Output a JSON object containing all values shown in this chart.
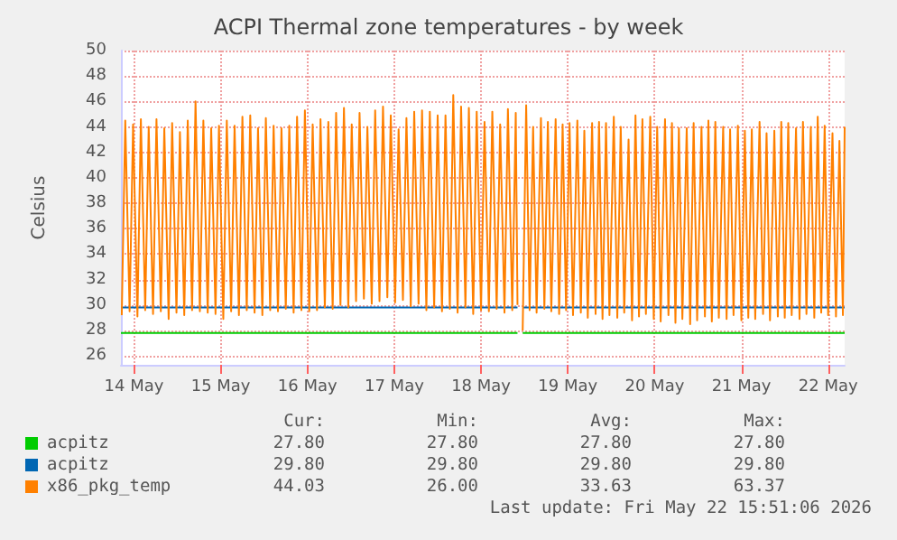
{
  "chart_data": {
    "type": "line",
    "title": "ACPI Thermal zone temperatures - by week",
    "ylabel": "Celsius",
    "xlim": [
      "--05-13T20:24",
      "--05-22T04:34"
    ],
    "xticks": [
      {
        "value": "--05-14",
        "label": "14 May"
      },
      {
        "value": "--05-15",
        "label": "15 May"
      },
      {
        "value": "--05-16",
        "label": "16 May"
      },
      {
        "value": "--05-17",
        "label": "17 May"
      },
      {
        "value": "--05-18",
        "label": "18 May"
      },
      {
        "value": "--05-19",
        "label": "19 May"
      },
      {
        "value": "--05-20",
        "label": "20 May"
      },
      {
        "value": "--05-21",
        "label": "21 May"
      },
      {
        "value": "--05-22",
        "label": "22 May"
      }
    ],
    "ylim": [
      25.3,
      50
    ],
    "yticks": [
      26,
      28,
      30,
      32,
      34,
      36,
      38,
      40,
      42,
      44,
      46,
      48,
      50
    ],
    "grid": true,
    "legend": "bottom",
    "marker": "none",
    "line_style": "solid",
    "series": [
      {
        "name": "acpitz",
        "color": "#00cc00",
        "x": [
          "--05-13T20:24",
          "--05-18T10:05",
          "--05-18T10:48",
          "--05-18T11:31",
          "--05-22T04:34"
        ],
        "values": [
          27.8,
          27.8,
          null,
          27.8,
          27.8
        ]
      },
      {
        "name": "acpitz",
        "color": "#0066b3",
        "x": [
          "--05-13T20:24",
          "--05-18T10:05",
          "--05-18T10:48",
          "--05-18T11:31",
          "--05-22T04:34"
        ],
        "values": [
          29.8,
          29.8,
          null,
          29.8,
          29.8
        ]
      },
      {
        "name": "x86_pkg_temp",
        "color": "#ff8000",
        "x": [
          "--05-13T20:38",
          "--05-13T21:36",
          "--05-13T22:48",
          "--05-13T23:46",
          "--05-14T00:58",
          "--05-14T01:55",
          "--05-14T03:07",
          "--05-14T04:05",
          "--05-14T05:17",
          "--05-14T06:14",
          "--05-14T07:26",
          "--05-14T08:24",
          "--05-14T09:36",
          "--05-14T10:34",
          "--05-14T11:46",
          "--05-14T12:43",
          "--05-14T13:55",
          "--05-14T14:53",
          "--05-14T16:05",
          "--05-14T17:02",
          "--05-14T18:14",
          "--05-14T19:12",
          "--05-14T20:24",
          "--05-14T21:22",
          "--05-14T22:34",
          "--05-14T23:31",
          "--05-15T00:43",
          "--05-15T01:41",
          "--05-15T02:53",
          "--05-15T03:50",
          "--05-15T05:02",
          "--05-15T06:00",
          "--05-15T07:12",
          "--05-15T08:10",
          "--05-15T09:22",
          "--05-15T10:19",
          "--05-15T11:31",
          "--05-15T12:29",
          "--05-15T13:41",
          "--05-15T14:38",
          "--05-15T15:50",
          "--05-15T16:48",
          "--05-15T18:00",
          "--05-15T18:58",
          "--05-15T20:10",
          "--05-15T21:07",
          "--05-15T22:19",
          "--05-15T23:17",
          "--05-16T00:29",
          "--05-16T01:26",
          "--05-16T02:38",
          "--05-16T03:36",
          "--05-16T04:48",
          "--05-16T05:46",
          "--05-16T06:58",
          "--05-16T07:55",
          "--05-16T09:07",
          "--05-16T10:05",
          "--05-16T11:17",
          "--05-16T12:14",
          "--05-16T13:26",
          "--05-16T14:24",
          "--05-16T15:36",
          "--05-16T16:34",
          "--05-16T17:46",
          "--05-16T18:43",
          "--05-16T19:55",
          "--05-16T20:53",
          "--05-16T22:05",
          "--05-16T23:02",
          "--05-17T00:14",
          "--05-17T01:12",
          "--05-17T02:24",
          "--05-17T03:22",
          "--05-17T04:34",
          "--05-17T05:31",
          "--05-17T06:43",
          "--05-17T07:41",
          "--05-17T08:53",
          "--05-17T09:50",
          "--05-17T11:02",
          "--05-17T12:00",
          "--05-17T13:12",
          "--05-17T14:10",
          "--05-17T15:22",
          "--05-17T16:19",
          "--05-17T17:31",
          "--05-17T18:29",
          "--05-17T19:41",
          "--05-17T20:38",
          "--05-17T21:50",
          "--05-17T22:48",
          "--05-18T00:00",
          "--05-18T00:58",
          "--05-18T02:10",
          "--05-18T03:07",
          "--05-18T04:19",
          "--05-18T05:17",
          "--05-18T06:29",
          "--05-18T07:26",
          "--05-18T08:38",
          "--05-18T09:36",
          "--05-18T10:05",
          "--05-18T10:48",
          "--05-18T11:31",
          "--05-18T12:29",
          "--05-18T13:26",
          "--05-18T14:24",
          "--05-18T15:22",
          "--05-18T16:34",
          "--05-18T17:31",
          "--05-18T18:29",
          "--05-18T19:26",
          "--05-18T20:38",
          "--05-18T21:36",
          "--05-18T22:34",
          "--05-18T23:31",
          "--05-19T00:29",
          "--05-19T01:26",
          "--05-19T02:38",
          "--05-19T03:36",
          "--05-19T04:34",
          "--05-19T05:31",
          "--05-19T06:43",
          "--05-19T07:41",
          "--05-19T08:38",
          "--05-19T09:36",
          "--05-19T10:34",
          "--05-19T11:31",
          "--05-19T12:43",
          "--05-19T13:41",
          "--05-19T14:38",
          "--05-19T15:36",
          "--05-19T16:48",
          "--05-19T17:46",
          "--05-19T18:43",
          "--05-19T19:41",
          "--05-19T20:38",
          "--05-19T21:36",
          "--05-19T22:48",
          "--05-19T23:46",
          "--05-20T00:43",
          "--05-20T01:41",
          "--05-20T02:53",
          "--05-20T03:50",
          "--05-20T04:48",
          "--05-20T05:46",
          "--05-20T06:43",
          "--05-20T07:41",
          "--05-20T08:53",
          "--05-20T09:50",
          "--05-20T10:48",
          "--05-20T11:46",
          "--05-20T12:58",
          "--05-20T13:55",
          "--05-20T14:53",
          "--05-20T15:50",
          "--05-20T16:48",
          "--05-20T17:46",
          "--05-20T18:58",
          "--05-20T19:55",
          "--05-20T20:53",
          "--05-20T21:50",
          "--05-20T23:02",
          "--05-21T00:00",
          "--05-21T00:58",
          "--05-21T01:55",
          "--05-21T02:53",
          "--05-21T03:50",
          "--05-21T05:02",
          "--05-21T06:00",
          "--05-21T06:58",
          "--05-21T07:55",
          "--05-21T09:07",
          "--05-21T10:05",
          "--05-21T11:02",
          "--05-21T12:00",
          "--05-21T12:58",
          "--05-21T13:55",
          "--05-21T15:07",
          "--05-21T16:05",
          "--05-21T17:02",
          "--05-21T18:00",
          "--05-21T19:12",
          "--05-21T20:10",
          "--05-21T21:07",
          "--05-21T22:05",
          "--05-21T23:02",
          "--05-22T00:00",
          "--05-22T01:12",
          "--05-22T02:10",
          "--05-22T03:07",
          "--05-22T04:05",
          "--05-22T04:34"
        ],
        "values": [
          29.2,
          44.5,
          29.5,
          44.2,
          29.1,
          44.6,
          29.6,
          44.0,
          29.3,
          44.6,
          29.5,
          43.9,
          28.9,
          44.3,
          29.4,
          43.6,
          29.2,
          44.5,
          29.6,
          46.0,
          29.5,
          44.5,
          29.4,
          43.9,
          29.3,
          44.1,
          28.9,
          44.5,
          29.5,
          44.1,
          29.2,
          44.8,
          29.6,
          44.9,
          29.4,
          43.9,
          29.2,
          44.7,
          29.6,
          44.1,
          29.5,
          43.9,
          29.7,
          44.1,
          29.4,
          44.8,
          29.6,
          45.3,
          29.5,
          44.2,
          29.6,
          44.6,
          29.8,
          44.4,
          29.7,
          45.1,
          30.0,
          45.5,
          29.8,
          44.2,
          30.3,
          45.1,
          30.5,
          44.0,
          30.1,
          45.3,
          30.3,
          45.6,
          30.6,
          44.9,
          30.2,
          43.8,
          30.4,
          44.7,
          29.9,
          45.2,
          30.1,
          45.3,
          29.6,
          45.2,
          29.8,
          44.9,
          29.5,
          44.9,
          29.7,
          46.5,
          29.4,
          45.6,
          29.8,
          45.5,
          29.3,
          45.2,
          29.6,
          44.4,
          29.5,
          45.2,
          29.7,
          44.2,
          29.4,
          45.4,
          29.6,
          45.1,
          30.0,
          null,
          28.0,
          45.7,
          29.6,
          44.0,
          29.4,
          44.7,
          29.7,
          44.4,
          29.5,
          44.6,
          29.3,
          44.2,
          29.6,
          44.3,
          29.2,
          44.5,
          29.4,
          43.7,
          29.0,
          44.3,
          29.3,
          44.4,
          28.9,
          44.3,
          29.2,
          44.8,
          29.0,
          44.0,
          29.4,
          43.0,
          28.8,
          44.9,
          29.1,
          44.6,
          29.3,
          44.8,
          28.9,
          44.0,
          28.7,
          44.6,
          29.2,
          44.3,
          28.6,
          43.9,
          28.9,
          43.9,
          28.5,
          44.3,
          28.8,
          44.0,
          29.1,
          44.5,
          28.7,
          44.4,
          29.0,
          44.0,
          28.9,
          43.8,
          29.2,
          44.1,
          28.8,
          43.7,
          29.0,
          43.8,
          28.9,
          44.4,
          29.3,
          43.5,
          28.8,
          43.7,
          29.1,
          44.4,
          29.0,
          44.3,
          29.2,
          43.9,
          28.9,
          44.4,
          29.3,
          44.0,
          29.0,
          44.8,
          29.4,
          44.1,
          29.2,
          43.5,
          29.1,
          42.9,
          29.2,
          44.0
        ]
      }
    ],
    "annotations": [
      "Cur:",
      "Min:",
      "Avg:",
      "Max:",
      "27.80",
      "27.80",
      "27.80",
      "27.80",
      "29.80",
      "29.80",
      "29.80",
      "29.80",
      "44.03",
      "26.00",
      "33.63",
      "63.37",
      "Last update: Fri May 22 15:51:06 2026"
    ]
  }
}
